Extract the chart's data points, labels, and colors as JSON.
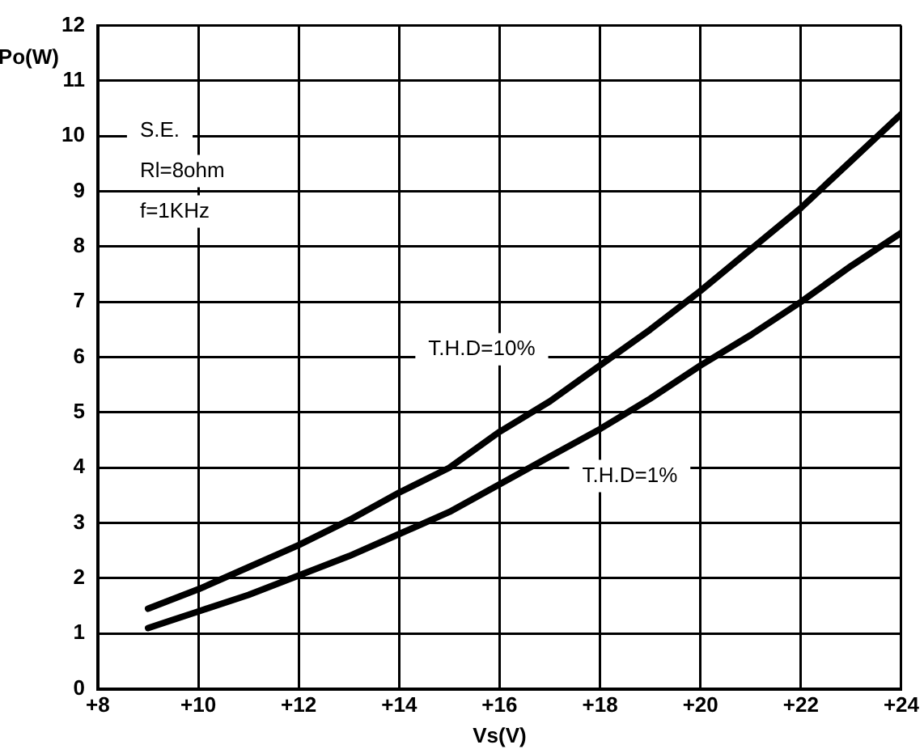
{
  "chart_data": {
    "type": "line",
    "xlabel": "Vs(V)",
    "ylabel": "Po(W)",
    "xlim": [
      8,
      24
    ],
    "xticks": [
      {
        "value": 8,
        "label": "+8"
      },
      {
        "value": 10,
        "label": "+10"
      },
      {
        "value": 12,
        "label": "+12"
      },
      {
        "value": 14,
        "label": "+14"
      },
      {
        "value": 16,
        "label": "+16"
      },
      {
        "value": 18,
        "label": "+18"
      },
      {
        "value": 20,
        "label": "+20"
      },
      {
        "value": 22,
        "label": "+22"
      },
      {
        "value": 24,
        "label": "+24"
      }
    ],
    "ylim": [
      0,
      12
    ],
    "yticks": [
      0,
      1,
      2,
      3,
      4,
      5,
      6,
      7,
      8,
      9,
      10,
      11,
      12
    ],
    "grid": true,
    "marker": "none",
    "line_style": "solid",
    "series": [
      {
        "name": "T.H.D=10%",
        "color": "#000000",
        "x": [
          9,
          10,
          11,
          12,
          13,
          14,
          15,
          16,
          17,
          18,
          19,
          20,
          21,
          22,
          23,
          24
        ],
        "values": [
          1.45,
          1.8,
          2.2,
          2.6,
          3.05,
          3.55,
          4.0,
          4.65,
          5.2,
          5.85,
          6.5,
          7.2,
          7.95,
          8.7,
          9.55,
          10.4
        ]
      },
      {
        "name": "T.H.D=1%",
        "color": "#000000",
        "x": [
          9,
          10,
          11,
          12,
          13,
          14,
          15,
          16,
          17,
          18,
          19,
          20,
          21,
          22,
          23,
          24
        ],
        "values": [
          1.1,
          1.4,
          1.7,
          2.05,
          2.4,
          2.8,
          3.2,
          3.7,
          4.2,
          4.7,
          5.25,
          5.85,
          6.4,
          7.0,
          7.65,
          8.25
        ]
      }
    ],
    "annotations": [
      "S.E.",
      "Rl=8ohm",
      "f=1KHz"
    ]
  }
}
